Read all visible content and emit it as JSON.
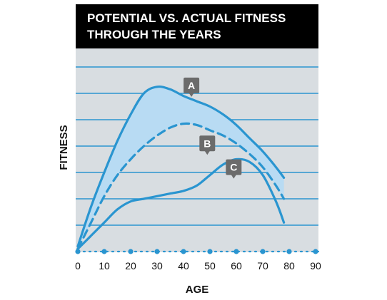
{
  "chart_data": {
    "type": "line",
    "title": "POTENTIAL VS. ACTUAL FITNESS THROUGH THE YEARS",
    "title_lines": [
      "POTENTIAL VS. ACTUAL FITNESS",
      "THROUGH THE YEARS"
    ],
    "xlabel": "AGE",
    "ylabel": "FITNESS",
    "xlim": [
      0,
      90
    ],
    "x_ticks": [
      0,
      10,
      20,
      30,
      40,
      50,
      60,
      70,
      80,
      90
    ],
    "ylim": [
      0,
      9
    ],
    "grid": true,
    "series": [
      {
        "label": "A",
        "style": "solid",
        "x": [
          0,
          5,
          10,
          15,
          20,
          25,
          30,
          35,
          40,
          45,
          50,
          55,
          60,
          65,
          70,
          75,
          78
        ],
        "y": [
          0.2,
          1.7,
          3.0,
          4.2,
          5.2,
          6.0,
          6.25,
          6.15,
          5.9,
          5.7,
          5.5,
          5.2,
          4.8,
          4.3,
          3.8,
          3.2,
          2.8
        ]
      },
      {
        "label": "B",
        "style": "dashed",
        "x": [
          0,
          5,
          10,
          15,
          20,
          25,
          30,
          35,
          40,
          45,
          50,
          55,
          60,
          65,
          70,
          75,
          78
        ],
        "y": [
          0.1,
          1.1,
          2.1,
          2.9,
          3.5,
          4.0,
          4.4,
          4.7,
          4.85,
          4.8,
          4.6,
          4.4,
          4.1,
          3.7,
          3.2,
          2.5,
          2.0
        ]
      },
      {
        "label": "C",
        "style": "solid",
        "x": [
          0,
          5,
          10,
          15,
          20,
          25,
          30,
          35,
          40,
          45,
          50,
          55,
          60,
          65,
          70,
          75,
          78
        ],
        "y": [
          0.1,
          0.6,
          1.1,
          1.6,
          1.9,
          2.0,
          2.1,
          2.2,
          2.3,
          2.5,
          2.9,
          3.3,
          3.5,
          3.4,
          2.9,
          1.9,
          1.1
        ]
      }
    ],
    "marker_labels": [
      {
        "text": "A",
        "x": 43,
        "y": 6.3
      },
      {
        "text": "B",
        "x": 49,
        "y": 4.1
      },
      {
        "text": "C",
        "x": 59,
        "y": 3.2
      }
    ],
    "colors": {
      "line": "#2a95d0",
      "fill": "#b8dbf3",
      "plot_bg": "#d8dde1",
      "title_bg": "#000000",
      "marker_bg": "#6b6b6b",
      "grid": "#2a95d0"
    }
  }
}
